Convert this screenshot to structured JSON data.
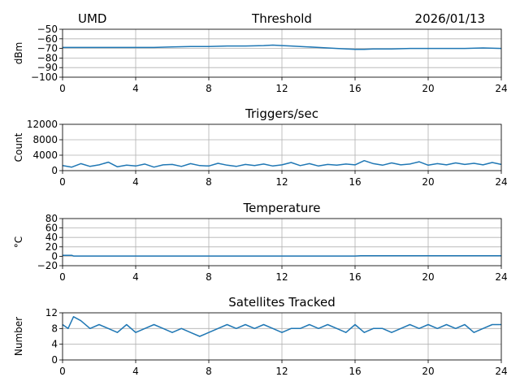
{
  "header": {
    "site": "UMD",
    "date": "2026/01/13"
  },
  "chart_data": [
    {
      "type": "line",
      "title": "Threshold",
      "ylabel": "dBm",
      "xlabel": "",
      "xlim": [
        0,
        24
      ],
      "ylim": [
        -100,
        -50
      ],
      "xticks": [
        0,
        4,
        8,
        12,
        16,
        20,
        24
      ],
      "yticks": [
        -100,
        -90,
        -80,
        -70,
        -60,
        -50
      ],
      "ytick_labels": [
        "−100",
        "−90",
        "−80",
        "−70",
        "−60",
        "−50"
      ],
      "grid": true,
      "series": [
        {
          "color": "#1f77b4",
          "x": [
            0,
            1,
            2,
            3,
            4,
            5,
            6,
            7,
            8,
            9,
            10,
            11,
            11.5,
            12,
            12.5,
            13,
            14,
            15,
            16,
            16.5,
            17,
            18,
            19,
            20,
            21,
            22,
            23,
            24
          ],
          "y": [
            -69,
            -69,
            -69,
            -69,
            -69,
            -69,
            -68.5,
            -68,
            -68,
            -67.5,
            -67.5,
            -67,
            -66.5,
            -67,
            -67.5,
            -68,
            -69,
            -70,
            -71,
            -71,
            -70.5,
            -70.5,
            -70,
            -70,
            -70,
            -70,
            -69.5,
            -70
          ]
        }
      ]
    },
    {
      "type": "line",
      "title": "Triggers/sec",
      "ylabel": "Count",
      "xlabel": "",
      "xlim": [
        0,
        24
      ],
      "ylim": [
        0,
        12000
      ],
      "xticks": [
        0,
        4,
        8,
        12,
        16,
        20,
        24
      ],
      "yticks": [
        0,
        4000,
        8000,
        12000
      ],
      "ytick_labels": [
        "0",
        "4000",
        "8000",
        "12000"
      ],
      "grid": true,
      "series": [
        {
          "color": "#1f77b4",
          "x": [
            0,
            0.5,
            1,
            1.5,
            2,
            2.5,
            3,
            3.5,
            4,
            4.5,
            5,
            5.5,
            6,
            6.5,
            7,
            7.5,
            8,
            8.5,
            9,
            9.5,
            10,
            10.5,
            11,
            11.5,
            12,
            12.5,
            13,
            13.5,
            14,
            14.5,
            15,
            15.5,
            16,
            16.5,
            17,
            17.5,
            18,
            18.5,
            19,
            19.5,
            20,
            20.5,
            21,
            21.5,
            22,
            22.5,
            23,
            23.5,
            24
          ],
          "y": [
            1300,
            900,
            1800,
            1100,
            1500,
            2200,
            1000,
            1400,
            1200,
            1700,
            900,
            1500,
            1600,
            1100,
            1800,
            1300,
            1200,
            1900,
            1400,
            1100,
            1600,
            1300,
            1700,
            1200,
            1500,
            2100,
            1300,
            1800,
            1200,
            1600,
            1400,
            1700,
            1500,
            2600,
            1800,
            1400,
            2000,
            1500,
            1700,
            2300,
            1400,
            1800,
            1500,
            2000,
            1600,
            1900,
            1500,
            2100,
            1600
          ]
        }
      ]
    },
    {
      "type": "line",
      "title": "Temperature",
      "ylabel": "°C",
      "xlabel": "",
      "xlim": [
        0,
        24
      ],
      "ylim": [
        -20,
        80
      ],
      "xticks": [
        0,
        4,
        8,
        12,
        16,
        20,
        24
      ],
      "yticks": [
        -20,
        0,
        20,
        40,
        60,
        80
      ],
      "ytick_labels": [
        "−20",
        "0",
        "20",
        "40",
        "60",
        "80"
      ],
      "grid": true,
      "series": [
        {
          "color": "#1f77b4",
          "x": [
            0,
            0.5,
            0.6,
            4,
            8,
            12,
            16,
            16.3,
            20,
            24
          ],
          "y": [
            2,
            2,
            0.5,
            0.5,
            0.5,
            0.5,
            0.5,
            1,
            1,
            1
          ]
        }
      ]
    },
    {
      "type": "line",
      "title": "Satellites Tracked",
      "ylabel": "Number",
      "xlabel": "",
      "xlim": [
        0,
        24
      ],
      "ylim": [
        0,
        12
      ],
      "xticks": [
        0,
        4,
        8,
        12,
        16,
        20,
        24
      ],
      "yticks": [
        0,
        4,
        8,
        12
      ],
      "ytick_labels": [
        "0",
        "4",
        "8",
        "12"
      ],
      "grid": true,
      "series": [
        {
          "color": "#1f77b4",
          "x": [
            0,
            0.3,
            0.6,
            1.0,
            1.5,
            2.0,
            2.5,
            3.0,
            3.5,
            4.0,
            4.5,
            5.0,
            5.5,
            6.0,
            6.5,
            7.0,
            7.5,
            8.0,
            8.5,
            9.0,
            9.5,
            10.0,
            10.5,
            11.0,
            11.5,
            12.0,
            12.5,
            13.0,
            13.5,
            14.0,
            14.5,
            15.0,
            15.5,
            16.0,
            16.5,
            17.0,
            17.5,
            18.0,
            18.5,
            19.0,
            19.5,
            20.0,
            20.5,
            21.0,
            21.5,
            22.0,
            22.5,
            23.0,
            23.5,
            24.0
          ],
          "y": [
            9,
            8,
            11,
            10,
            8,
            9,
            8,
            7,
            9,
            7,
            8,
            9,
            8,
            7,
            8,
            7,
            6,
            7,
            8,
            9,
            8,
            9,
            8,
            9,
            8,
            7,
            8,
            8,
            9,
            8,
            9,
            8,
            7,
            9,
            7,
            8,
            8,
            7,
            8,
            9,
            8,
            9,
            8,
            9,
            8,
            9,
            7,
            8,
            9,
            9
          ]
        }
      ]
    }
  ]
}
